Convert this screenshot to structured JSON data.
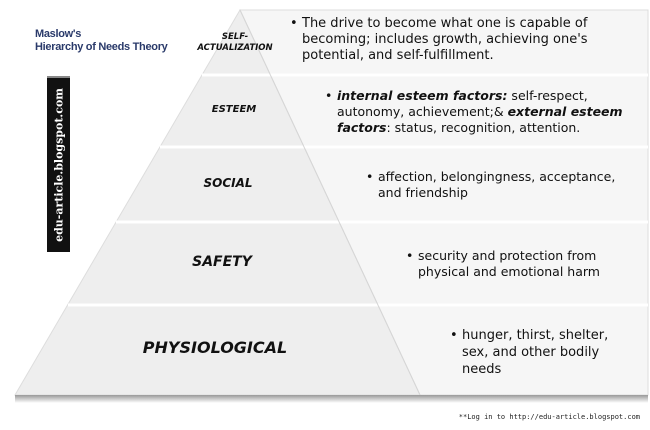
{
  "title": {
    "line1": "Maslow's",
    "line2": "Hierarchy of Needs Theory"
  },
  "side_label": "edu-article.blogspot.com",
  "levels": [
    {
      "name": "SELF-",
      "name2": "ACTUALIZATION",
      "desc": "The drive to become what one is capable of becoming; includes growth, achieving one's potential, and self-fulfillment."
    },
    {
      "name": "ESTEEM",
      "desc_b1": "internal esteem factors:",
      "desc_1": " self-respect, autonomy, achievement;& ",
      "desc_b2": "external esteem factors",
      "desc_2": ": status, recognition, attention."
    },
    {
      "name": "SOCIAL",
      "desc": "affection, belongingness, acceptance, and friendship"
    },
    {
      "name": "SAFETY",
      "desc": "security and protection from physical and emotional harm"
    },
    {
      "name": "PHYSIOLOGICAL",
      "desc": "hunger, thirst, shelter, sex, and other bodily needs"
    }
  ],
  "bullet": "•",
  "footer": "**Log in to http://edu-article.blogspot.com",
  "colors": {
    "face": "#efefef",
    "side": "#f7f7f7",
    "edge": "#d8d8d8"
  }
}
